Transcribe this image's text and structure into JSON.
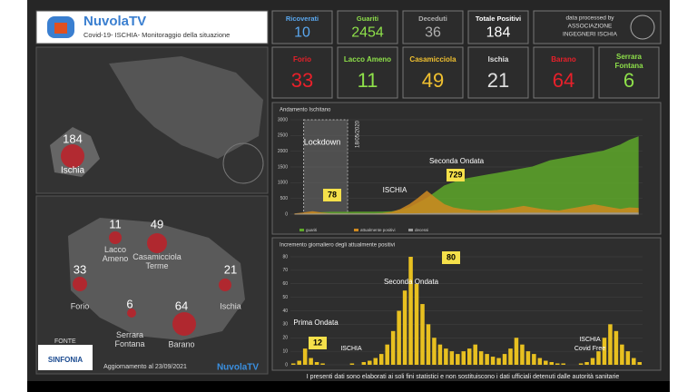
{
  "header": {
    "brand": "NuvolaTV",
    "subtitle": "Covid-19- ISCHIA- Monitoraggio della situazione",
    "credit_1": "data processed by",
    "credit_2": "ASSOCIAZIONE",
    "credit_3": "INGEGNERI ISCHIA"
  },
  "totals": [
    {
      "label": "Ricoverati",
      "value": "10",
      "color": "#5aa8f0"
    },
    {
      "label": "Guariti",
      "value": "2454",
      "color": "#8ee04a"
    },
    {
      "label": "Deceduti",
      "value": "36",
      "color": "#b0b0b0"
    },
    {
      "label": "Totale Positivi",
      "value": "184",
      "color": "#ffffff"
    }
  ],
  "towns": [
    {
      "label": "Forio",
      "value": "33",
      "color": "#e8202a"
    },
    {
      "label": "Lacco Ameno",
      "value": "11",
      "color": "#8ee04a"
    },
    {
      "label": "Casamicciola",
      "value": "49",
      "color": "#f0c030"
    },
    {
      "label": "Ischia",
      "value": "21",
      "color": "#e0e0e0"
    },
    {
      "label": "Barano",
      "value": "64",
      "color": "#e8202a"
    },
    {
      "label": "Serrara Fontana",
      "value": "6",
      "color": "#8ee04a"
    }
  ],
  "island_map": {
    "value": "184",
    "label": "Ischia"
  },
  "town_map": [
    {
      "value": "11",
      "label": "Lacco Ameno"
    },
    {
      "value": "49",
      "label": "Casamicciola Terme"
    },
    {
      "value": "33",
      "label": "Forio"
    },
    {
      "value": "21",
      "label": "Ischia"
    },
    {
      "value": "6",
      "label": "Serrara Fontana"
    },
    {
      "value": "64",
      "label": "Barano"
    }
  ],
  "source": {
    "label": "FONTE",
    "name": "SINFONIA",
    "updated": "Aggiornamento al 23/09/2021",
    "brand": "NuvolaTV"
  },
  "footer": "I presenti dati sono elaborati ai soli fini statistici e non sostituiscono i dati ufficiali detenuti dalle autorità sanitarie",
  "chart_data": [
    {
      "type": "area",
      "title": "Andamento Ischitano",
      "categories": [
        null,
        null,
        null,
        null,
        null,
        null,
        null,
        null,
        null,
        null,
        null,
        null,
        null,
        null,
        null,
        null,
        null,
        null,
        null,
        null,
        null,
        null,
        null,
        null,
        null,
        null,
        null,
        null,
        null,
        null,
        null,
        null,
        null,
        null,
        null,
        null,
        null,
        null,
        null,
        null
      ],
      "series": [
        {
          "name": "guariti",
          "color": "#5ea82a",
          "values": [
            0,
            5,
            20,
            50,
            60,
            62,
            63,
            64,
            65,
            66,
            70,
            80,
            120,
            200,
            350,
            500,
            700,
            900,
            1000,
            1100,
            1150,
            1200,
            1250,
            1300,
            1350,
            1400,
            1450,
            1500,
            1600,
            1700,
            1750,
            1800,
            1850,
            1900,
            1950,
            2000,
            2100,
            2200,
            2350,
            2454
          ]
        },
        {
          "name": "attualmente positivi",
          "color": "#d08a20",
          "values": [
            10,
            40,
            78,
            40,
            10,
            5,
            3,
            2,
            2,
            5,
            20,
            60,
            150,
            300,
            500,
            729,
            500,
            300,
            200,
            150,
            120,
            100,
            100,
            120,
            150,
            200,
            250,
            200,
            150,
            120,
            100,
            150,
            200,
            250,
            300,
            250,
            200,
            150,
            200,
            184
          ]
        },
        {
          "name": "decessi",
          "color": "#9a9a9a",
          "values": [
            0,
            2,
            5,
            8,
            8,
            8,
            8,
            8,
            8,
            8,
            8,
            9,
            10,
            12,
            15,
            18,
            20,
            22,
            24,
            25,
            26,
            26,
            27,
            28,
            29,
            30,
            31,
            31,
            32,
            32,
            33,
            33,
            34,
            34,
            35,
            35,
            35,
            36,
            36,
            36
          ]
        }
      ],
      "ylim": [
        0,
        3000
      ],
      "yticks": [
        0,
        500,
        1000,
        1500,
        2000,
        2500,
        3000
      ],
      "annotations": [
        "Lockdown",
        "18/05/2020",
        "78",
        "ISCHIA",
        "Seconda Ondata",
        "729"
      ]
    },
    {
      "type": "bar",
      "title": "Incremento giornaliero degli attualmente positivi",
      "color": "#e8c020",
      "categories": [
        null,
        null,
        null,
        null,
        null,
        null,
        null,
        null,
        null,
        null,
        null,
        null,
        null,
        null,
        null,
        null,
        null,
        null,
        null,
        null,
        null,
        null,
        null,
        null,
        null,
        null,
        null,
        null,
        null,
        null,
        null,
        null,
        null,
        null,
        null,
        null,
        null,
        null,
        null,
        null,
        null,
        null,
        null,
        null,
        null,
        null,
        null,
        null,
        null,
        null,
        null,
        null,
        null,
        null,
        null,
        null,
        null,
        null,
        null,
        null
      ],
      "values": [
        1,
        3,
        12,
        5,
        2,
        1,
        0,
        0,
        0,
        0,
        1,
        0,
        2,
        3,
        5,
        8,
        15,
        25,
        40,
        55,
        80,
        60,
        45,
        30,
        20,
        15,
        12,
        10,
        8,
        10,
        12,
        15,
        10,
        8,
        6,
        5,
        8,
        12,
        20,
        15,
        10,
        8,
        5,
        3,
        2,
        1,
        1,
        0,
        0,
        1,
        2,
        5,
        10,
        20,
        30,
        25,
        15,
        10,
        5,
        2
      ],
      "ylim": [
        0,
        80
      ],
      "yticks": [
        0,
        10,
        20,
        30,
        40,
        50,
        60,
        70,
        80
      ],
      "annotations": [
        "80",
        "Seconda Ondata",
        "Prima Ondata",
        "12",
        "ISCHIA",
        "ISCHIA",
        "Covid Free"
      ]
    }
  ]
}
